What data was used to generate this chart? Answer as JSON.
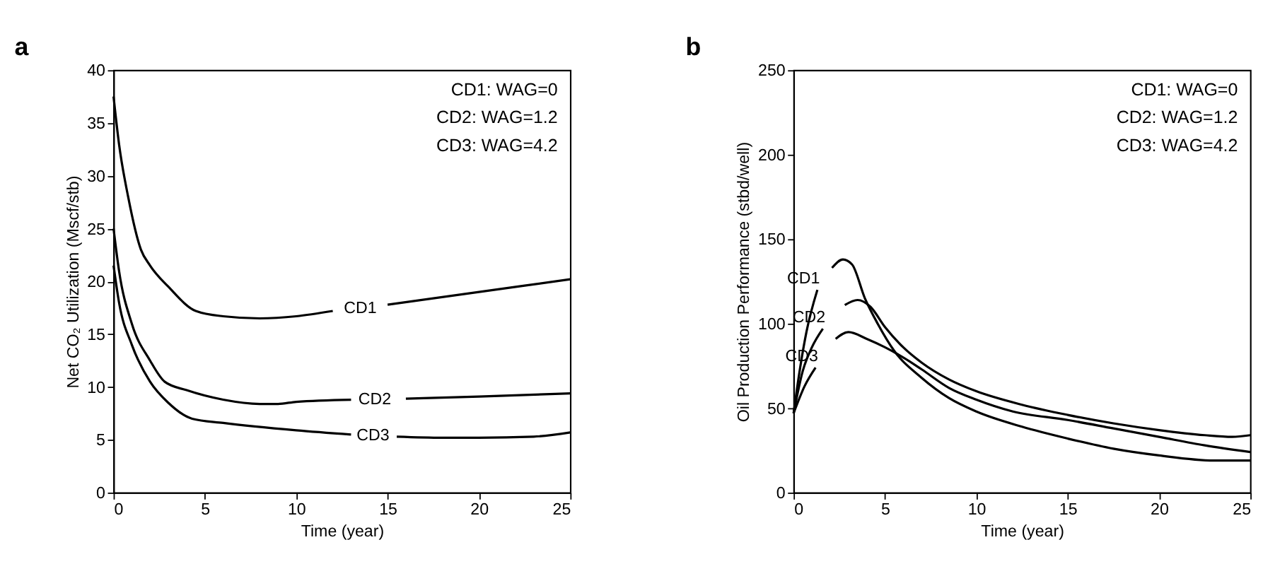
{
  "chart_data": [
    {
      "type": "line",
      "title": "a",
      "xlabel": "Time (year)",
      "ylabel": "Net CO₂ Utilization (Mscf/stb)",
      "xlim": [
        0,
        25
      ],
      "xticks": [
        0,
        5,
        10,
        15,
        20,
        25
      ],
      "ylim": [
        0,
        40
      ],
      "yticks": [
        0,
        5,
        10,
        15,
        20,
        25,
        30,
        35,
        40
      ],
      "grid": false,
      "legend": false,
      "marker": "none",
      "line_style": "solid",
      "series": [
        {
          "name": "CD1",
          "color": "#000000",
          "x": [
            0,
            0.3,
            0.8,
            1.5,
            2,
            3,
            4.5,
            6,
            8,
            10,
            12,
            13.5,
            15,
            20,
            25
          ],
          "values": [
            37.5,
            33,
            28,
            23,
            21.5,
            19.5,
            17.2,
            16.7,
            16.5,
            16.7,
            17.2,
            null,
            17.8,
            19,
            20.2
          ]
        },
        {
          "name": "CD2",
          "color": "#000000",
          "x": [
            0,
            0.3,
            1,
            2,
            2.8,
            4,
            6,
            8,
            9,
            10,
            13,
            14.3,
            16,
            20,
            25
          ],
          "values": [
            25,
            21,
            16,
            12.5,
            10.5,
            9.7,
            8.8,
            8.4,
            8.4,
            8.6,
            8.8,
            null,
            8.9,
            9.1,
            9.4
          ]
        },
        {
          "name": "CD3",
          "color": "#000000",
          "x": [
            0,
            0.3,
            1,
            2,
            3,
            4.3,
            6,
            10,
            13,
            14.2,
            15.5,
            18,
            20,
            23,
            25
          ],
          "values": [
            21.5,
            18,
            14,
            10.5,
            8.5,
            7,
            6.6,
            5.9,
            5.5,
            null,
            5.3,
            5.2,
            5.2,
            5.3,
            5.7
          ]
        }
      ],
      "annotations": [
        "CD1: WAG=0",
        "CD2: WAG=1.2",
        "CD3: WAG=4.2"
      ]
    },
    {
      "type": "line",
      "title": "b",
      "xlabel": "Time (year)",
      "ylabel": "Oil Production Performance (stbd/well)",
      "xlim": [
        0,
        25
      ],
      "xticks": [
        0,
        5,
        10,
        15,
        20,
        25
      ],
      "ylim": [
        0,
        250
      ],
      "yticks": [
        0,
        50,
        100,
        150,
        200,
        250
      ],
      "grid": false,
      "legend": false,
      "marker": "none",
      "line_style": "solid",
      "series": [
        {
          "name": "CD1",
          "color": "#000000",
          "x": [
            0,
            0.3,
            0.7,
            1.3,
            1.7,
            2.1,
            2.7,
            3.2,
            3.9,
            4.6,
            5.5,
            7,
            8.5,
            10,
            12.5,
            15,
            17.5,
            20,
            23,
            25
          ],
          "values": [
            47,
            70,
            95,
            120,
            null,
            133,
            138,
            135,
            115,
            100,
            84,
            68,
            56,
            48,
            39,
            32,
            26,
            22,
            19,
            19
          ]
        },
        {
          "name": "CD2",
          "color": "#000000",
          "x": [
            0,
            0.5,
            1,
            1.6,
            2.2,
            2.8,
            3.5,
            4.2,
            5,
            6,
            7,
            8.5,
            10,
            12.5,
            15,
            17.5,
            20,
            22.5,
            24,
            25
          ],
          "values": [
            47,
            72,
            86,
            97,
            null,
            111,
            114,
            110,
            98,
            86,
            77,
            67,
            60,
            52,
            46,
            41,
            37,
            34,
            33,
            34
          ]
        },
        {
          "name": "CD3",
          "color": "#000000",
          "x": [
            0,
            0.6,
            1.2,
            1.6,
            2.3,
            3,
            4,
            5,
            6,
            7,
            8.5,
            10,
            12,
            15,
            17.5,
            20,
            22.5,
            25
          ],
          "values": [
            47,
            63,
            74,
            null,
            91,
            95,
            91,
            86,
            80,
            73,
            62,
            55,
            48,
            43,
            38,
            33,
            28,
            24
          ]
        }
      ],
      "annotations": [
        "CD1: WAG=0",
        "CD2: WAG=1.2",
        "CD3: WAG=4.2"
      ]
    }
  ]
}
